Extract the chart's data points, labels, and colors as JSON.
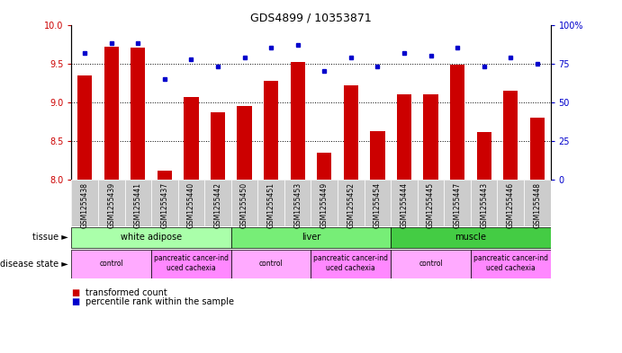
{
  "title": "GDS4899 / 10353871",
  "samples": [
    "GSM1255438",
    "GSM1255439",
    "GSM1255441",
    "GSM1255437",
    "GSM1255440",
    "GSM1255442",
    "GSM1255450",
    "GSM1255451",
    "GSM1255453",
    "GSM1255449",
    "GSM1255452",
    "GSM1255454",
    "GSM1255444",
    "GSM1255445",
    "GSM1255447",
    "GSM1255443",
    "GSM1255446",
    "GSM1255448"
  ],
  "bar_values": [
    9.35,
    9.72,
    9.7,
    8.12,
    9.07,
    8.87,
    8.95,
    9.28,
    9.52,
    8.35,
    9.22,
    8.63,
    9.1,
    9.1,
    9.48,
    8.62,
    9.15,
    8.8
  ],
  "dot_values": [
    82,
    88,
    88,
    65,
    78,
    73,
    79,
    85,
    87,
    70,
    79,
    73,
    82,
    80,
    85,
    73,
    79,
    75
  ],
  "ylim_left": [
    8.0,
    10.0
  ],
  "ylim_right": [
    0,
    100
  ],
  "yticks_left": [
    8.0,
    8.5,
    9.0,
    9.5,
    10.0
  ],
  "yticks_right": [
    0,
    25,
    50,
    75,
    100
  ],
  "bar_color": "#cc0000",
  "dot_color": "#0000cc",
  "tissue_groups": [
    {
      "label": "white adipose",
      "start": 0,
      "end": 5,
      "color": "#aaffaa"
    },
    {
      "label": "liver",
      "start": 6,
      "end": 11,
      "color": "#77ee77"
    },
    {
      "label": "muscle",
      "start": 12,
      "end": 17,
      "color": "#44cc44"
    }
  ],
  "disease_groups": [
    {
      "label": "control",
      "start": 0,
      "end": 2,
      "color": "#ffaaff"
    },
    {
      "label": "pancreatic cancer-ind\nuced cachexia",
      "start": 3,
      "end": 5,
      "color": "#ff88ff"
    },
    {
      "label": "control",
      "start": 6,
      "end": 8,
      "color": "#ffaaff"
    },
    {
      "label": "pancreatic cancer-ind\nuced cachexia",
      "start": 9,
      "end": 11,
      "color": "#ff88ff"
    },
    {
      "label": "control",
      "start": 12,
      "end": 14,
      "color": "#ffaaff"
    },
    {
      "label": "pancreatic cancer-ind\nuced cachexia",
      "start": 15,
      "end": 17,
      "color": "#ff88ff"
    }
  ],
  "bar_width": 0.55,
  "xlabel_color": "#cc0000",
  "ylabel_right_color": "#0000cc",
  "xticklabel_bg": "#cccccc",
  "grid_yticks": [
    8.5,
    9.0,
    9.5
  ]
}
